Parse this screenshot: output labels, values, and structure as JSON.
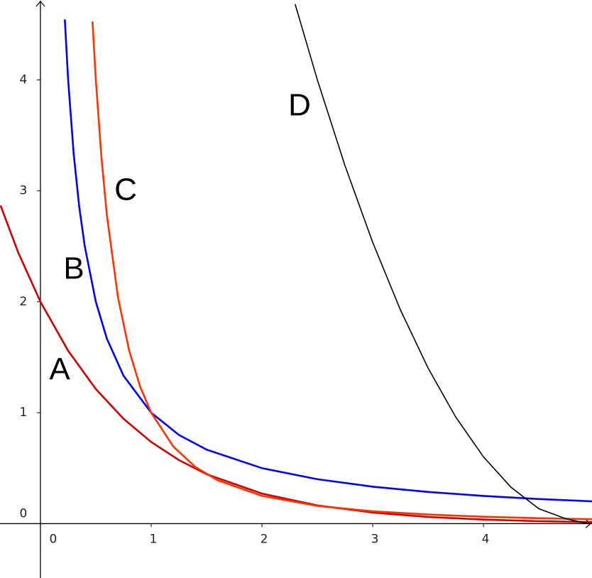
{
  "chart_data": {
    "type": "line",
    "xlim": [
      -0.365,
      4.98
    ],
    "ylim": [
      -0.49,
      4.72
    ],
    "xticks": [
      0,
      1,
      2,
      3,
      4
    ],
    "yticks": [
      0,
      1,
      2,
      3,
      4
    ],
    "series": [
      {
        "name": "A",
        "color": "#cc0000",
        "x": [
          -0.36,
          -0.2,
          0,
          0.25,
          0.5,
          0.75,
          1,
          1.25,
          1.5,
          2,
          2.5,
          3,
          3.5,
          4,
          4.5,
          4.98
        ],
        "values": [
          2.867,
          2.443,
          2,
          1.558,
          1.213,
          0.945,
          0.736,
          0.573,
          0.446,
          0.271,
          0.164,
          0.1,
          0.06,
          0.037,
          0.022,
          0.014
        ]
      },
      {
        "name": "B",
        "color": "#0000ff",
        "x": [
          0.22,
          0.25,
          0.3,
          0.35,
          0.4,
          0.5,
          0.6,
          0.75,
          1,
          1.25,
          1.5,
          2,
          2.5,
          3,
          3.5,
          4,
          4.5,
          4.98
        ],
        "values": [
          4.545,
          4,
          3.333,
          2.857,
          2.5,
          2,
          1.667,
          1.333,
          1,
          0.8,
          0.667,
          0.5,
          0.4,
          0.333,
          0.286,
          0.25,
          0.222,
          0.201
        ]
      },
      {
        "name": "C",
        "color": "#ff3300",
        "x": [
          0.47,
          0.5,
          0.55,
          0.6,
          0.7,
          0.8,
          0.9,
          1,
          1.2,
          1.4,
          1.6,
          2,
          2.5,
          3,
          3.5,
          4,
          4.5,
          4.98
        ],
        "values": [
          4.527,
          4,
          3.306,
          2.778,
          2.041,
          1.563,
          1.235,
          1,
          0.694,
          0.51,
          0.391,
          0.25,
          0.16,
          0.111,
          0.082,
          0.0625,
          0.049,
          0.04
        ]
      },
      {
        "name": "D",
        "color": "#000000",
        "x": [
          2.3,
          2.5,
          2.75,
          3,
          3.25,
          3.5,
          3.75,
          4,
          4.25,
          4.5,
          4.75,
          4.95,
          4.98
        ],
        "values": [
          4.682,
          4.002,
          3.227,
          2.535,
          1.927,
          1.402,
          0.96,
          0.602,
          0.327,
          0.135,
          0.042,
          0,
          0.0006
        ]
      }
    ]
  }
}
